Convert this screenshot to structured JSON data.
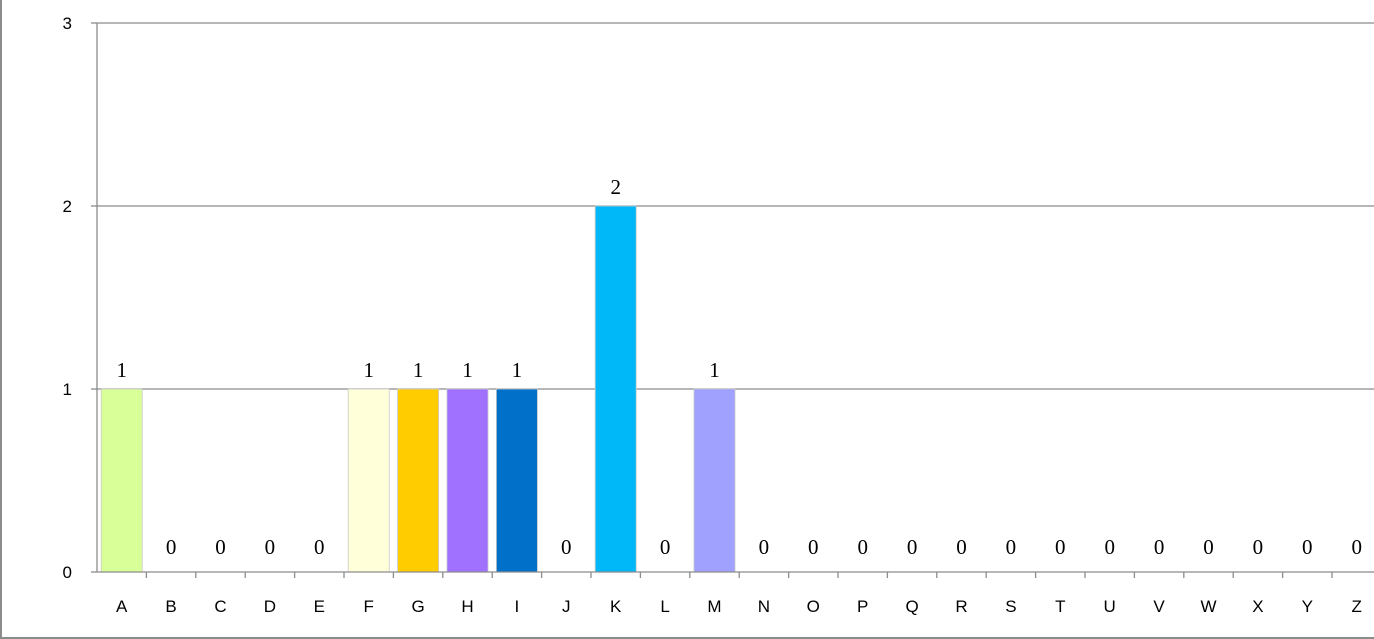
{
  "chart_data": {
    "type": "bar",
    "title": "",
    "xlabel": "",
    "ylabel": "",
    "ylim": [
      0,
      3
    ],
    "yticks": [
      0,
      1,
      2,
      3
    ],
    "grid": true,
    "legend": "none",
    "categories": [
      "A",
      "B",
      "C",
      "D",
      "E",
      "F",
      "G",
      "H",
      "I",
      "J",
      "K",
      "L",
      "M",
      "N",
      "O",
      "P",
      "Q",
      "R",
      "S",
      "T",
      "U",
      "V",
      "W",
      "X",
      "Y",
      "Z"
    ],
    "values": [
      1,
      0,
      0,
      0,
      0,
      1,
      1,
      1,
      1,
      0,
      2,
      0,
      1,
      0,
      0,
      0,
      0,
      0,
      0,
      0,
      0,
      0,
      0,
      0,
      0,
      0
    ],
    "colors": [
      "#d9ff99",
      "#ffffff",
      "#ffffff",
      "#ffffff",
      "#ffffff",
      "#ffffd9",
      "#ffcc00",
      "#a070ff",
      "#0070c8",
      "#ffffff",
      "#00b8f8",
      "#ffffff",
      "#a0a0ff",
      "#ffffff",
      "#ffffff",
      "#ffffff",
      "#ffffff",
      "#ffffff",
      "#ffffff",
      "#ffffff",
      "#ffffff",
      "#ffffff",
      "#ffffff",
      "#ffffff",
      "#ffffff",
      "#ffffff"
    ],
    "gridline_color": "#8c8c8c",
    "axis_color": "#8c8c8c"
  }
}
